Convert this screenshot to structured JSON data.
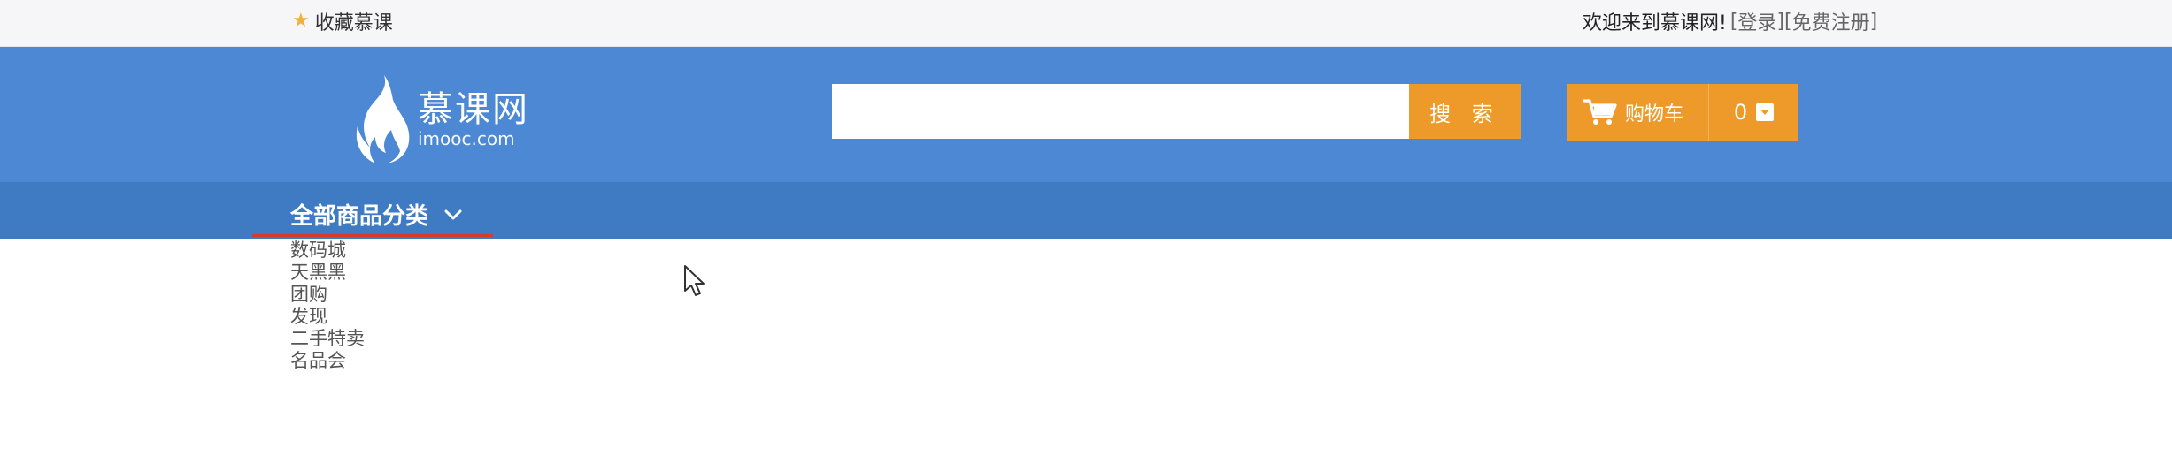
{
  "topbar": {
    "favorite_label": "收藏慕课",
    "welcome_text": "欢迎来到慕课网!",
    "login_link": "登录",
    "register_link": "免费注册"
  },
  "header": {
    "logo_cn": "慕课网",
    "logo_en": "imooc.com",
    "search": {
      "value": "",
      "placeholder": ""
    },
    "search_button": "搜 索",
    "cart": {
      "label": "购物车",
      "count": "0"
    }
  },
  "nav": {
    "all_categories": "全部商品分类"
  },
  "category_menu": {
    "items": [
      "数码城",
      "天黑黑",
      "团购",
      "发现",
      "二手特卖",
      "名品会"
    ]
  },
  "colors": {
    "topbar_bg": "#f6f6f8",
    "header_bg": "#4c88d3",
    "nav_bg": "#3f7bc3",
    "accent_orange": "#ee9a2b",
    "underline_red": "#d63b2a",
    "star_gold": "#f0b33a"
  },
  "icons": [
    "star-icon",
    "flame-logo-icon",
    "cart-icon",
    "dropdown-box-icon",
    "chevron-down-icon",
    "mouse-pointer-icon"
  ]
}
